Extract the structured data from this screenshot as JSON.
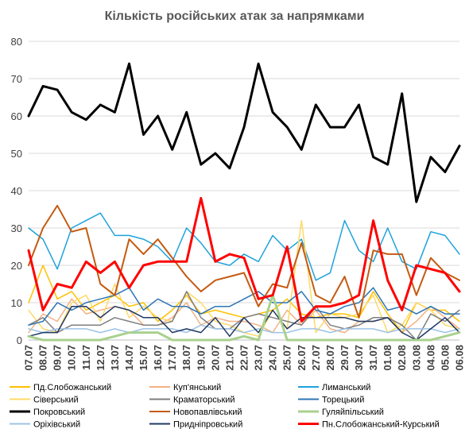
{
  "chart_data": {
    "type": "line",
    "title": "Кількість російських атак за напрямками",
    "xlabel": "",
    "ylabel": "",
    "ylim": [
      0,
      80
    ],
    "yticks": [
      0,
      10,
      20,
      30,
      40,
      50,
      60,
      70,
      80
    ],
    "grid": true,
    "legend_position": "bottom",
    "x": [
      "07.07",
      "08.07",
      "09.07",
      "10.07",
      "11.07",
      "12.07",
      "13.07",
      "14.07",
      "15.07",
      "16.07",
      "17.07",
      "18.07",
      "19.07",
      "20.07",
      "21.07",
      "22.07",
      "23.07",
      "24.07",
      "25.07",
      "26.07",
      "27.07",
      "28.07",
      "29.07",
      "30.07",
      "31.07",
      "01.08",
      "02.08",
      "03.08",
      "04.08",
      "05.08",
      "06.08"
    ],
    "series": [
      {
        "name": "Пд.Слобожанський",
        "color": "#FFC000",
        "width": 1.5,
        "values": [
          10,
          20,
          11,
          13,
          8,
          10,
          12,
          9,
          10,
          5,
          8,
          12,
          7,
          8,
          7,
          6,
          7,
          8,
          11,
          7,
          6,
          7,
          7,
          6,
          13,
          7,
          2,
          10,
          8,
          8,
          5
        ]
      },
      {
        "name": "Куп'янський",
        "color": "#F4B183",
        "width": 1.5,
        "values": [
          2,
          7,
          5,
          11,
          7,
          8,
          9,
          8,
          4,
          4,
          6,
          10,
          4,
          6,
          5,
          5,
          4,
          2,
          8,
          4,
          8,
          3,
          2,
          5,
          5,
          6,
          2,
          5,
          9,
          6,
          3
        ]
      },
      {
        "name": "Лиманський",
        "color": "#1FA2DC",
        "width": 1.5,
        "values": [
          30,
          27,
          19,
          30,
          32,
          34,
          28,
          28,
          27,
          25,
          21,
          30,
          26,
          21,
          20,
          23,
          21,
          28,
          24,
          27,
          16,
          18,
          32,
          24,
          21,
          30,
          21,
          19,
          29,
          28,
          23
        ]
      },
      {
        "name": "Сіверський",
        "color": "#FFD966",
        "width": 1.5,
        "values": [
          8,
          3,
          2,
          10,
          12,
          5,
          15,
          6,
          9,
          6,
          5,
          13,
          10,
          5,
          4,
          2,
          1,
          8,
          3,
          32,
          2,
          7,
          6,
          7,
          12,
          2,
          4,
          10,
          8,
          4,
          3
        ]
      },
      {
        "name": "Краматорський",
        "color": "#7F7F7F",
        "width": 1.5,
        "values": [
          4,
          6,
          2,
          4,
          4,
          4,
          6,
          5,
          4,
          4,
          5,
          13,
          6,
          3,
          3,
          6,
          7,
          6,
          5,
          4,
          9,
          4,
          3,
          4,
          6,
          6,
          4,
          0,
          7,
          5,
          8
        ]
      },
      {
        "name": "Торецький",
        "color": "#2E75B6",
        "width": 1.5,
        "values": [
          4,
          5,
          10,
          8,
          10,
          11,
          12,
          14,
          8,
          11,
          9,
          9,
          7,
          9,
          9,
          11,
          13,
          10,
          10,
          13,
          8,
          7,
          9,
          10,
          14,
          8,
          9,
          7,
          9,
          7,
          7
        ]
      },
      {
        "name": "Покровський",
        "color": "#000000",
        "width": 3,
        "values": [
          60,
          68,
          67,
          61,
          59,
          63,
          61,
          74,
          55,
          60,
          51,
          61,
          47,
          50,
          46,
          57,
          74,
          61,
          57,
          51,
          63,
          57,
          57,
          63,
          49,
          47,
          66,
          37,
          49,
          45,
          52
        ]
      },
      {
        "name": "Новопавлівський",
        "color": "#C55A11",
        "width": 2,
        "values": [
          20,
          30,
          36,
          29,
          30,
          15,
          12,
          27,
          23,
          27,
          22,
          17,
          13,
          16,
          17,
          18,
          9,
          15,
          14,
          26,
          12,
          10,
          17,
          6,
          24,
          23,
          23,
          12,
          22,
          18,
          16
        ]
      },
      {
        "name": "Гуляйпільський",
        "color": "#A9D18E",
        "width": 3,
        "values": [
          1,
          0,
          0,
          0,
          0,
          0,
          1,
          2,
          2,
          2,
          0,
          0,
          0,
          0,
          0,
          1,
          0,
          12,
          0,
          0,
          0,
          0,
          0,
          0,
          0,
          0,
          0,
          0,
          0,
          1,
          2
        ]
      },
      {
        "name": "Оріхівський",
        "color": "#9DC3E6",
        "width": 1.5,
        "values": [
          3,
          2,
          3,
          3,
          3,
          2,
          3,
          2,
          3,
          3,
          3,
          2,
          4,
          3,
          3,
          2,
          3,
          2,
          2,
          3,
          3,
          2,
          3,
          3,
          3,
          2,
          3,
          3,
          3,
          2,
          3
        ]
      },
      {
        "name": "Придніпровський",
        "color": "#1F3864",
        "width": 1.5,
        "values": [
          1,
          2,
          2,
          9,
          9,
          6,
          9,
          8,
          6,
          6,
          2,
          3,
          2,
          6,
          1,
          6,
          2,
          8,
          3,
          6,
          6,
          6,
          6,
          5,
          5,
          6,
          2,
          0,
          3,
          6,
          2
        ]
      },
      {
        "name": "Пн.Слобожанський-Курський",
        "color": "#FF0000",
        "width": 3,
        "values": [
          24,
          8,
          15,
          14,
          21,
          18,
          21,
          14,
          20,
          21,
          21,
          21,
          38,
          21,
          23,
          22,
          11,
          12,
          25,
          5,
          9,
          9,
          10,
          12,
          32,
          16,
          8,
          20,
          19,
          18,
          13
        ]
      }
    ]
  }
}
